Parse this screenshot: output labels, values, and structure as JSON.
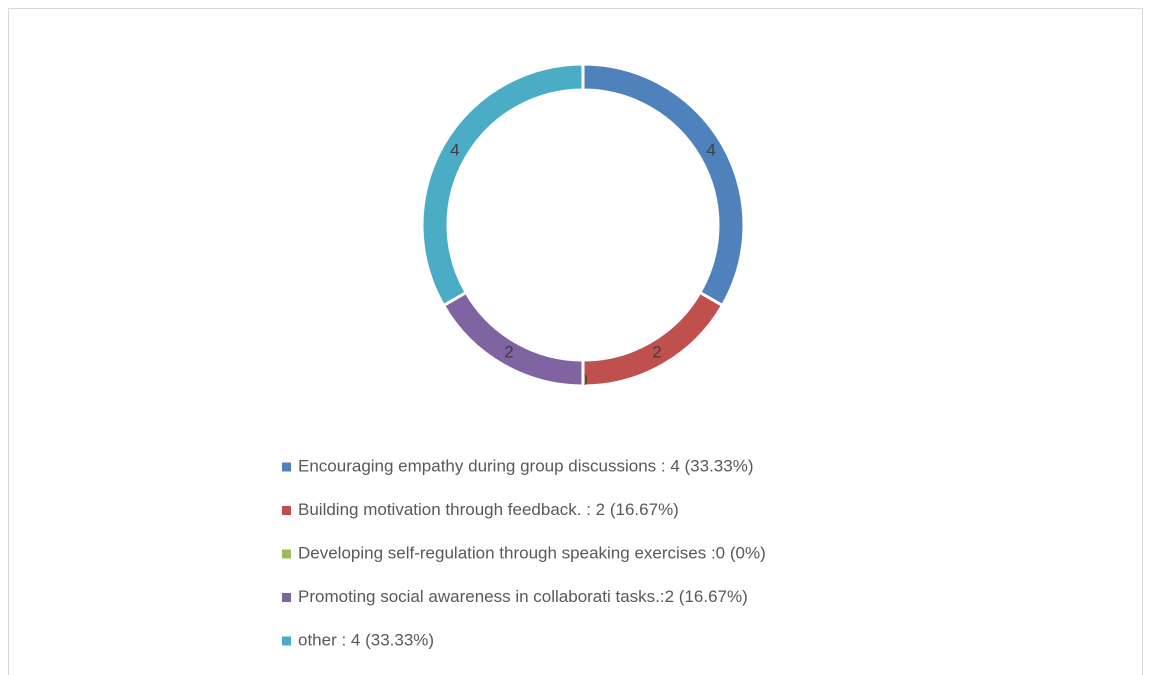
{
  "chart_data": {
    "type": "donut",
    "categories": [
      "Encouraging empathy during group discussions : 4 (33.33%)",
      "Building motivation through feedback. : 2 (16.67%)",
      "Developing self-regulation through speaking exercises :0 (0%)",
      "Promoting social awareness in collaborati tasks.:2 (16.67%)",
      "other : 4 (33.33%)"
    ],
    "values": [
      4,
      2,
      0,
      2,
      4
    ],
    "colors": [
      "#4f81bd",
      "#c0504d",
      "#9bbb59",
      "#8064a2",
      "#4bacc6"
    ],
    "legend": "bottom"
  }
}
